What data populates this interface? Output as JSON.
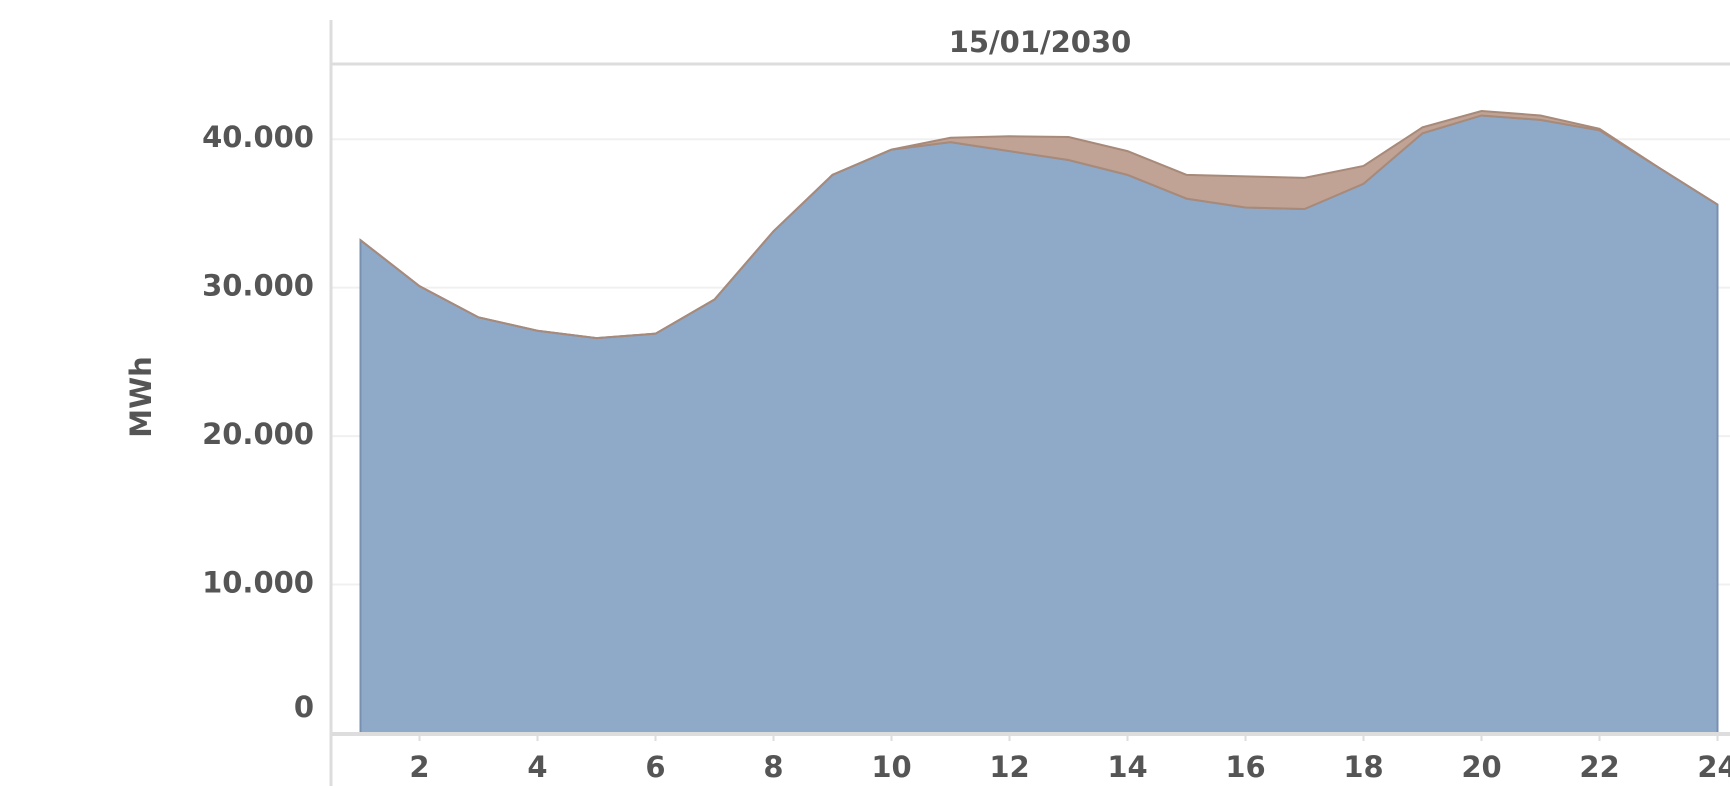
{
  "chart_data": {
    "type": "stacked_area",
    "title": "15/01/2030",
    "y_label": "MWh",
    "x": [
      1,
      2,
      3,
      4,
      5,
      6,
      7,
      8,
      9,
      10,
      11,
      12,
      13,
      14,
      15,
      16,
      17,
      18,
      19,
      20,
      21,
      22,
      23,
      24
    ],
    "series": [
      {
        "color": "#8faac8",
        "values": [
          33200,
          30100,
          28000,
          27100,
          26600,
          26900,
          29200,
          33800,
          37600,
          39300,
          39800,
          39200,
          38600,
          37600,
          36000,
          35400,
          35300,
          37000,
          40400,
          41600,
          41300,
          40600,
          38100,
          35600
        ]
      },
      {
        "color": "#c0a394",
        "values": [
          0,
          0,
          0,
          0,
          0,
          0,
          0,
          0,
          0,
          0,
          300,
          1000,
          1550,
          1600,
          1600,
          2100,
          2100,
          1200,
          400,
          300,
          300,
          100,
          0,
          0
        ]
      }
    ],
    "xlim": [
      0.5,
      24.5
    ],
    "xticks": [
      2,
      4,
      6,
      8,
      10,
      12,
      14,
      16,
      18,
      20,
      22,
      24
    ],
    "ylim": [
      0,
      45000
    ],
    "yticks": [
      0,
      {
        "value": 10000,
        "label": "10.000"
      },
      {
        "value": 20000,
        "label": "20.000"
      },
      {
        "value": 30000,
        "label": "30.000"
      },
      {
        "value": 40000,
        "label": "40.000"
      }
    ],
    "grid": true
  }
}
